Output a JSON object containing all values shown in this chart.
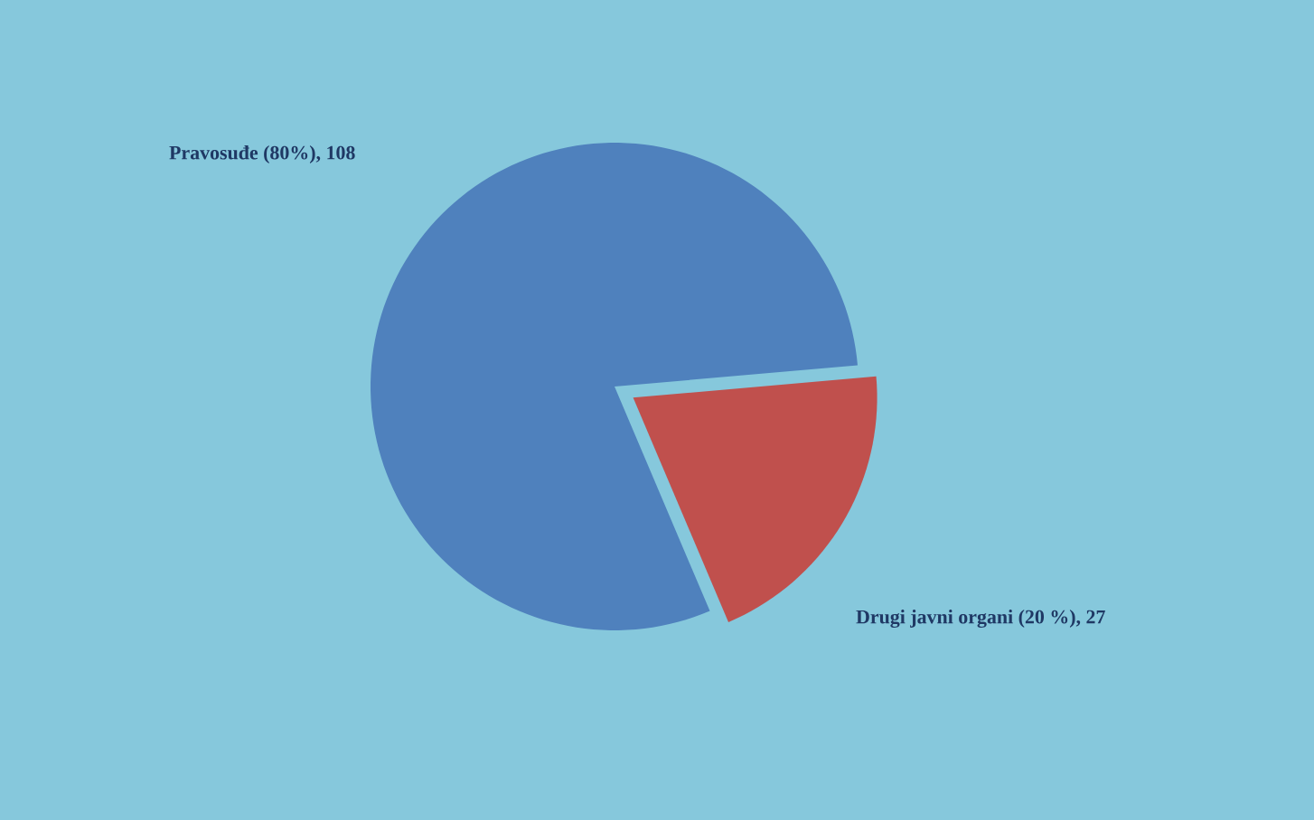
{
  "chart_data": {
    "type": "pie",
    "categories": [
      "Pravosuđe (80%), 108",
      "Drugi javni organi (20 %), 27"
    ],
    "values": [
      108,
      27
    ],
    "colors": [
      "#4f81bd",
      "#c0504d"
    ]
  }
}
